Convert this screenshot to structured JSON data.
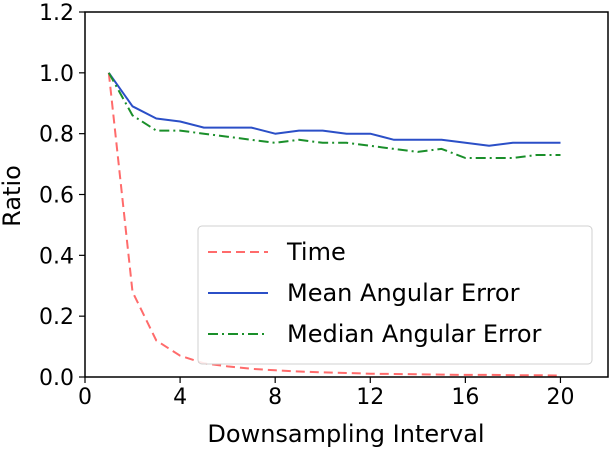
{
  "chart_data": {
    "type": "line",
    "title": "",
    "xlabel": "Downsampling Interval",
    "ylabel": "Ratio",
    "xlim": [
      0,
      22
    ],
    "ylim": [
      0,
      1.2
    ],
    "xticks": [
      0,
      4,
      8,
      12,
      16,
      20
    ],
    "xtick_labels": [
      "0",
      "4",
      "8",
      "12",
      "16",
      "20"
    ],
    "yticks": [
      0.0,
      0.2,
      0.4,
      0.6,
      0.8,
      1.0,
      1.2
    ],
    "ytick_labels": [
      "0.0",
      "0.2",
      "0.4",
      "0.6",
      "0.8",
      "1.0",
      "1.2"
    ],
    "grid": false,
    "legend_position": "lower-right",
    "x": [
      1,
      2,
      3,
      4,
      5,
      6,
      7,
      8,
      9,
      10,
      11,
      12,
      13,
      14,
      15,
      16,
      17,
      18,
      19,
      20
    ],
    "series": [
      {
        "name": "Time",
        "color": "#ff6b6b",
        "style": "dashed",
        "values": [
          1.0,
          0.28,
          0.12,
          0.07,
          0.045,
          0.035,
          0.027,
          0.022,
          0.018,
          0.015,
          0.013,
          0.011,
          0.01,
          0.009,
          0.008,
          0.007,
          0.007,
          0.006,
          0.006,
          0.005
        ]
      },
      {
        "name": "Mean Angular Error",
        "color": "#2b4fc7",
        "style": "solid",
        "values": [
          1.0,
          0.89,
          0.85,
          0.84,
          0.82,
          0.82,
          0.82,
          0.8,
          0.81,
          0.81,
          0.8,
          0.8,
          0.78,
          0.78,
          0.78,
          0.77,
          0.76,
          0.77,
          0.77,
          0.77
        ]
      },
      {
        "name": "Median Angular Error",
        "color": "#1a8f2a",
        "style": "dashdot",
        "values": [
          1.0,
          0.86,
          0.81,
          0.81,
          0.8,
          0.79,
          0.78,
          0.77,
          0.78,
          0.77,
          0.77,
          0.76,
          0.75,
          0.74,
          0.75,
          0.72,
          0.72,
          0.72,
          0.73,
          0.73
        ]
      }
    ]
  }
}
